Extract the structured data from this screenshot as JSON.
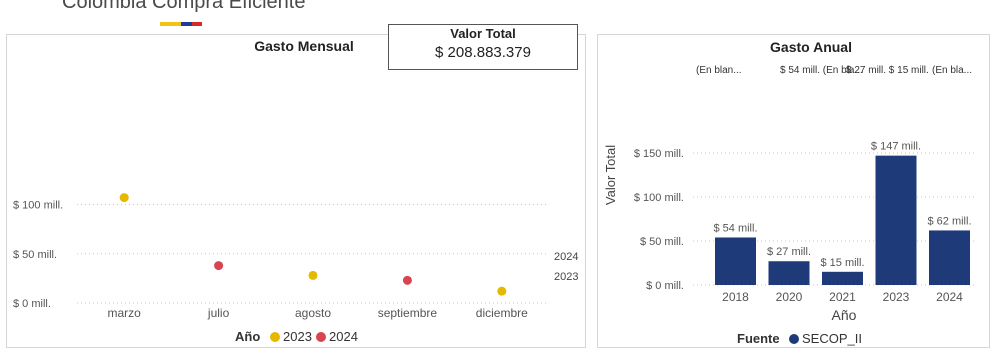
{
  "header": {
    "brand_text": "Colombia Compra Eficiente",
    "flag_colors": [
      "#f2c314",
      "#1c3f94",
      "#d42a2a"
    ]
  },
  "kpi_card": {
    "title": "Valor Total",
    "value": "$ 208.883.379"
  },
  "colors": {
    "year_2023": "#e6b800",
    "year_2024": "#d64550",
    "bar": "#1f3a78",
    "grid": "#c8c8c8",
    "axis_text": "#555555"
  },
  "chart_data": [
    {
      "type": "scatter",
      "title": "Gasto Mensual",
      "categories": [
        "marzo",
        "julio",
        "agosto",
        "septiembre",
        "diciembre"
      ],
      "yticks": [
        "$ 0 mill.",
        "$ 50 mill.",
        "$ 100 mill."
      ],
      "ylim": [
        0,
        120
      ],
      "grid": true,
      "legend": {
        "title": "Año",
        "entries": [
          "2023",
          "2024"
        ],
        "position": "bottom"
      },
      "points": [
        {
          "category": "marzo",
          "value": 107,
          "series": "2023"
        },
        {
          "category": "julio",
          "value": 38,
          "series": "2024"
        },
        {
          "category": "agosto",
          "value": 28,
          "series": "2023"
        },
        {
          "category": "septiembre",
          "value": 23,
          "series": "2024"
        },
        {
          "category": "diciembre",
          "value": 12,
          "series": "2023"
        }
      ],
      "annotations": [
        "2024",
        "2023"
      ]
    },
    {
      "type": "bar",
      "title": "Gasto Anual",
      "categories": [
        "2018",
        "2020",
        "2021",
        "2023",
        "2024"
      ],
      "values": [
        54,
        27,
        15,
        147,
        62
      ],
      "data_labels": [
        "$ 54 mill.",
        "$ 27 mill.",
        "$ 15 mill.",
        "$ 147 mill.",
        "$ 62 mill."
      ],
      "top_labels": [
        "(En blan...",
        "$ 54 mill.",
        "(En bla...",
        "$ 27 mill.",
        "$ 15 mill.",
        "(En bla..."
      ],
      "xlabel": "Año",
      "ylabel": "Valor Total",
      "yticks": [
        "$ 0 mill.",
        "$ 50 mill.",
        "$ 100 mill.",
        "$ 150 mill."
      ],
      "ylim": [
        0,
        150
      ],
      "grid": true,
      "legend": {
        "title": "Fuente",
        "entries": [
          "SECOP_II"
        ],
        "position": "bottom"
      }
    }
  ]
}
